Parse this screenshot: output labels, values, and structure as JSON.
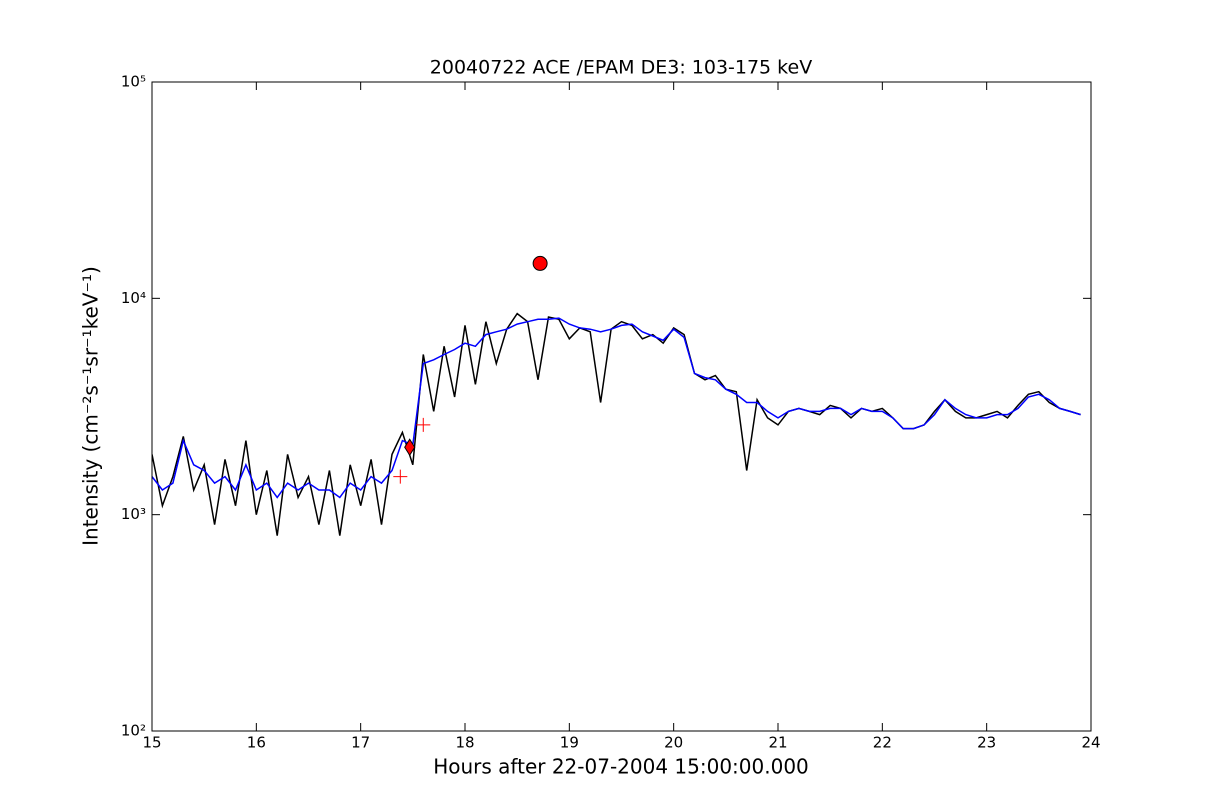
{
  "chart_data": {
    "type": "line",
    "title": "20040722 ACE /EPAM DE3: 103-175 keV",
    "x_label": "Hours after 22-07-2004 15:00:00.000",
    "y_label": "Intensity (cm⁻²s⁻¹sr⁻¹keV⁻¹)",
    "log_y": true,
    "xlim": [
      15,
      24
    ],
    "xticks": [
      15,
      16,
      17,
      18,
      19,
      20,
      21,
      22,
      23,
      24
    ],
    "ylim": [
      100,
      100000
    ],
    "yticks": [
      {
        "value": 100,
        "label": "10²"
      },
      {
        "value": 1000,
        "label": "10³"
      },
      {
        "value": 10000,
        "label": "10⁴"
      },
      {
        "value": 100000,
        "label": "10⁵"
      }
    ],
    "x": [
      15.0,
      15.1,
      15.2,
      15.3,
      15.4,
      15.5,
      15.6,
      15.7,
      15.8,
      15.9,
      16.0,
      16.1,
      16.2,
      16.3,
      16.4,
      16.5,
      16.6,
      16.7,
      16.8,
      16.9,
      17.0,
      17.1,
      17.2,
      17.3,
      17.4,
      17.5,
      17.6,
      17.7,
      17.8,
      17.9,
      18.0,
      18.1,
      18.2,
      18.3,
      18.4,
      18.5,
      18.6,
      18.7,
      18.8,
      18.9,
      19.0,
      19.1,
      19.2,
      19.3,
      19.4,
      19.5,
      19.6,
      19.7,
      19.8,
      19.9,
      20.0,
      20.1,
      20.2,
      20.3,
      20.4,
      20.5,
      20.6,
      20.7,
      20.8,
      20.9,
      21.0,
      21.1,
      21.2,
      21.3,
      21.4,
      21.5,
      21.6,
      21.7,
      21.8,
      21.9,
      22.0,
      22.1,
      22.2,
      22.3,
      22.4,
      22.5,
      22.6,
      22.7,
      22.8,
      22.9,
      23.0,
      23.1,
      23.2,
      23.3,
      23.4,
      23.5,
      23.6,
      23.7,
      23.8,
      23.9
    ],
    "series": [
      {
        "color": "#000000",
        "values": [
          1900,
          1100,
          1500,
          2300,
          1300,
          1700,
          900,
          1800,
          1100,
          2200,
          1000,
          1600,
          800,
          1900,
          1200,
          1500,
          900,
          1600,
          800,
          1700,
          1100,
          1800,
          900,
          1900,
          2400,
          1700,
          5500,
          3000,
          6000,
          3500,
          7500,
          4000,
          7800,
          5000,
          7200,
          8500,
          7800,
          4200,
          8200,
          8000,
          6500,
          7300,
          7000,
          3300,
          7200,
          7800,
          7500,
          6500,
          6800,
          6200,
          7300,
          6800,
          4500,
          4200,
          4400,
          3800,
          3700,
          1600,
          3400,
          2800,
          2600,
          3000,
          3100,
          3000,
          2900,
          3200,
          3100,
          2800,
          3100,
          3000,
          3100,
          2800,
          2500,
          2500,
          2600,
          3000,
          3400,
          3000,
          2800,
          2800,
          2900,
          3000,
          2800,
          3200,
          3600,
          3700,
          3300,
          3100,
          3000,
          2900
        ]
      },
      {
        "color": "#0000ff",
        "values": [
          1500,
          1300,
          1400,
          2200,
          1700,
          1600,
          1400,
          1500,
          1300,
          1700,
          1300,
          1400,
          1200,
          1400,
          1300,
          1400,
          1300,
          1300,
          1200,
          1400,
          1300,
          1500,
          1400,
          1600,
          2200,
          2100,
          5000,
          5200,
          5500,
          5800,
          6200,
          6000,
          6800,
          7000,
          7200,
          7600,
          7800,
          8000,
          8000,
          8100,
          7600,
          7300,
          7200,
          7000,
          7200,
          7500,
          7600,
          7000,
          6700,
          6400,
          7200,
          6600,
          4500,
          4300,
          4200,
          3800,
          3600,
          3300,
          3300,
          3000,
          2800,
          3000,
          3100,
          3000,
          3000,
          3100,
          3100,
          2900,
          3100,
          3000,
          3000,
          2800,
          2500,
          2500,
          2600,
          2900,
          3400,
          3100,
          2900,
          2800,
          2800,
          2900,
          2900,
          3100,
          3500,
          3600,
          3400,
          3100,
          3000,
          2900
        ]
      }
    ],
    "markers": [
      {
        "x": 18.72,
        "value": 14500,
        "marker": "circle",
        "color": "#ff0000"
      },
      {
        "x": 17.47,
        "value": 2050,
        "marker": "diamond",
        "color": "#ff0000"
      },
      {
        "x": 17.38,
        "value": 1500,
        "marker": "plus",
        "color": "#ff0000"
      },
      {
        "x": 17.6,
        "value": 2600,
        "marker": "plus",
        "color": "#ff0000"
      }
    ]
  }
}
